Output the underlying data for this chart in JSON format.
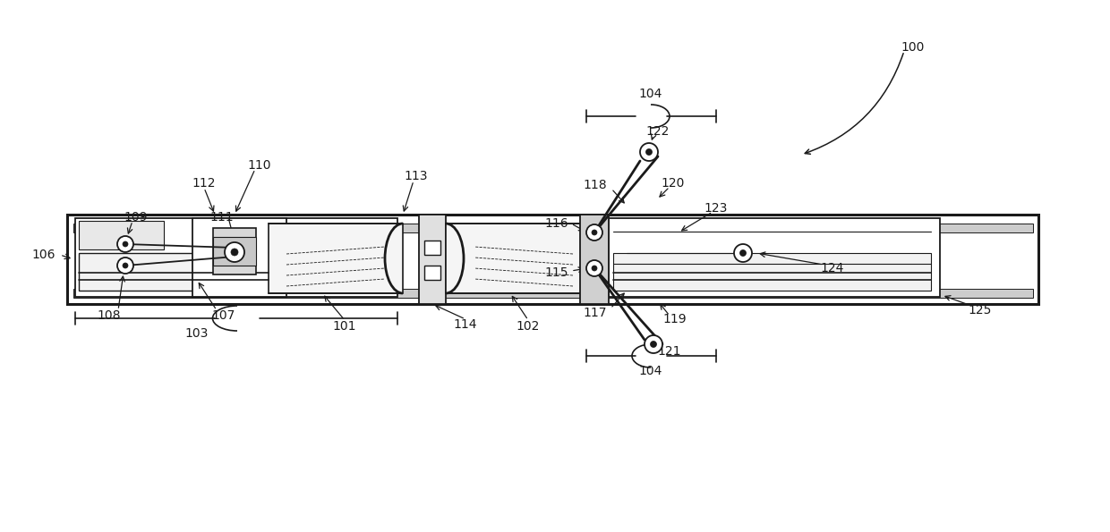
{
  "bg_color": "#ffffff",
  "line_color": "#1a1a1a",
  "lw": 1.5,
  "lw_thin": 0.8,
  "lw_thick": 2.5,
  "figsize": [
    12.4,
    5.95
  ],
  "dpi": 100
}
